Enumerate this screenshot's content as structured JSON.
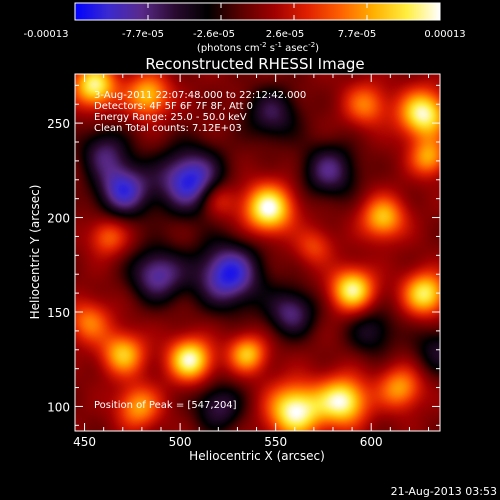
{
  "colorbar": {
    "tick_labels": [
      "-0.00013",
      "-7.7e-05",
      "-2.6e-05",
      "2.6e-05",
      "7.7e-05",
      "0.00013"
    ],
    "units": {
      "base": "(photons cm",
      "exp1": "-2",
      "mid1": " s",
      "exp2": "-1",
      "mid2": " asec",
      "exp3": "-2",
      "end": ")"
    },
    "colors": [
      "#0000ff",
      "#3a2ad0",
      "#5a2a8a",
      "#2a0a30",
      "#000000",
      "#5a0000",
      "#a00000",
      "#e02000",
      "#ff6000",
      "#ffb000",
      "#ffee40",
      "#ffffff"
    ]
  },
  "chart_data": {
    "type": "heatmap",
    "title": "Reconstructed RHESSI Image",
    "xlabel": "Heliocentric X (arcsec)",
    "ylabel": "Heliocentric Y (arcsec)",
    "xlim": [
      445,
      636
    ],
    "ylim": [
      87,
      276
    ],
    "x_ticks": [
      450,
      500,
      550,
      600
    ],
    "y_ticks": [
      100,
      150,
      200,
      250
    ],
    "annotations": [
      " 3-Aug-2011 22:07:48.000 to 22:12:42.000",
      "Detectors: 4F 5F 6F 7F 8F, Att 0",
      "Energy Range: 25.0 - 50.0 keV",
      "Clean    Total counts: 7.12E+03"
    ],
    "peak_label": "Position of Peak = [547,204]",
    "peak_position": [
      547,
      204
    ],
    "value_range": [
      -0.00013,
      0.00013
    ],
    "sources": [
      {
        "x": 546,
        "y": 205,
        "amp": 1.0,
        "s": 9
      },
      {
        "x": 590,
        "y": 162,
        "amp": 0.9,
        "s": 8
      },
      {
        "x": 628,
        "y": 160,
        "amp": 0.85,
        "s": 8
      },
      {
        "x": 606,
        "y": 200,
        "amp": 0.7,
        "s": 8
      },
      {
        "x": 627,
        "y": 255,
        "amp": 0.95,
        "s": 9
      },
      {
        "x": 630,
        "y": 232,
        "amp": 0.6,
        "s": 7
      },
      {
        "x": 505,
        "y": 125,
        "amp": 0.95,
        "s": 8
      },
      {
        "x": 560,
        "y": 98,
        "amp": 1.0,
        "s": 10
      },
      {
        "x": 585,
        "y": 103,
        "amp": 0.95,
        "s": 9
      },
      {
        "x": 535,
        "y": 128,
        "amp": 0.7,
        "s": 7
      },
      {
        "x": 470,
        "y": 128,
        "amp": 0.7,
        "s": 8
      },
      {
        "x": 478,
        "y": 100,
        "amp": 0.6,
        "s": 8
      },
      {
        "x": 452,
        "y": 145,
        "amp": 0.5,
        "s": 8
      },
      {
        "x": 455,
        "y": 270,
        "amp": 0.9,
        "s": 8
      },
      {
        "x": 483,
        "y": 265,
        "amp": 0.7,
        "s": 8
      },
      {
        "x": 597,
        "y": 260,
        "amp": 0.5,
        "s": 8
      },
      {
        "x": 615,
        "y": 110,
        "amp": 0.6,
        "s": 8
      },
      {
        "x": 520,
        "y": 210,
        "amp": 0.4,
        "s": 7
      },
      {
        "x": 570,
        "y": 185,
        "amp": 0.35,
        "s": 7
      },
      {
        "x": 462,
        "y": 190,
        "amp": 0.45,
        "s": 7
      },
      {
        "x": 470,
        "y": 215,
        "amp": -0.8,
        "s": 10
      },
      {
        "x": 505,
        "y": 220,
        "amp": -0.9,
        "s": 12
      },
      {
        "x": 525,
        "y": 170,
        "amp": -0.9,
        "s": 12
      },
      {
        "x": 488,
        "y": 170,
        "amp": -0.7,
        "s": 10
      },
      {
        "x": 558,
        "y": 150,
        "amp": -0.6,
        "s": 9
      },
      {
        "x": 578,
        "y": 225,
        "amp": -0.6,
        "s": 10
      },
      {
        "x": 548,
        "y": 255,
        "amp": -0.5,
        "s": 10
      },
      {
        "x": 635,
        "y": 130,
        "amp": -0.4,
        "s": 9
      },
      {
        "x": 520,
        "y": 100,
        "amp": -0.5,
        "s": 9
      },
      {
        "x": 460,
        "y": 235,
        "amp": -0.5,
        "s": 9
      },
      {
        "x": 600,
        "y": 140,
        "amp": -0.4,
        "s": 9
      }
    ]
  },
  "footer": {
    "timestamp": "21-Aug-2013 03:53"
  }
}
